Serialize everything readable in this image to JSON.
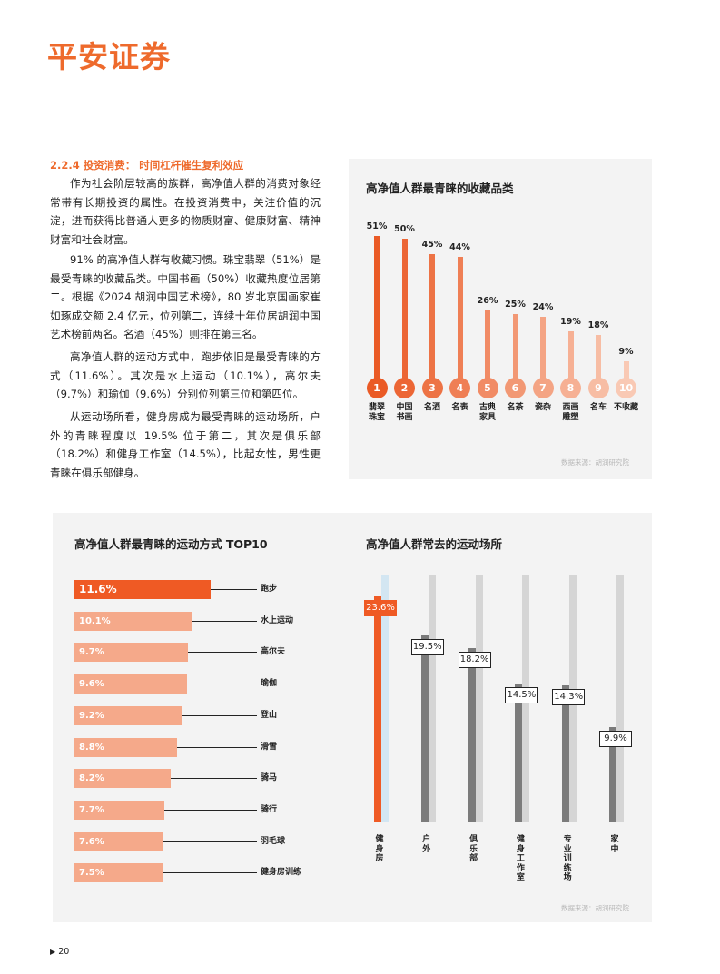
{
  "header": {
    "logo_text": "平安证券"
  },
  "section": {
    "heading": "2.2.4 投资消费： 时间杠杆催生复利效应",
    "paragraphs": [
      "作为社会阶层较高的族群，高净值人群的消费对象经常带有长期投资的属性。在投资消费中，关注价值的沉淀，进而获得比普通人更多的物质财富、健康财富、精神财富和社会财富。",
      "91% 的高净值人群有收藏习惯。珠宝翡翠（51%）是最受青睐的收藏品类。中国书画（50%）收藏热度位居第二。根据《2024 胡润中国艺术榜》，80 岁北京国画家崔如琢成交额 2.4 亿元，位列第二，连续十年位居胡润中国艺术榜前两名。名酒（45%）则排在第三名。",
      "高净值人群的运动方式中，跑步依旧是最受青睐的方式（11.6%）。其次是水上运动（10.1%），高尔夫（9.7%）和瑜伽（9.6%）分别位列第三位和第四位。",
      "从运动场所看，健身房成为最受青睐的运动场所，户外的青睐程度以 19.5% 位于第二，其次是俱乐部（18.2%）和健身工作室（14.5%），比起女性，男性更青睐在俱乐部健身。"
    ]
  },
  "chart_data": [
    {
      "type": "bar",
      "title": "高净值人群最青睐的收藏品类",
      "categories": [
        "翡翠珠宝",
        "中国书画",
        "名酒",
        "名表",
        "古典家具",
        "名茶",
        "瓷杂",
        "西画雕塑",
        "名车",
        "不收藏"
      ],
      "category_lines": [
        [
          "翡翠",
          "珠宝"
        ],
        [
          "中国",
          "书画"
        ],
        [
          "名酒"
        ],
        [
          "名表"
        ],
        [
          "古典",
          "家具"
        ],
        [
          "名茶"
        ],
        [
          "瓷杂"
        ],
        [
          "西画",
          "雕塑"
        ],
        [
          "名车"
        ],
        [
          "不收藏"
        ]
      ],
      "ranks": [
        "1",
        "2",
        "3",
        "4",
        "5",
        "6",
        "7",
        "8",
        "9",
        "10"
      ],
      "values": [
        51,
        50,
        45,
        44,
        26,
        25,
        24,
        19,
        18,
        9
      ],
      "value_labels": [
        "51%",
        "50%",
        "45%",
        "44%",
        "26%",
        "25%",
        "24%",
        "19%",
        "18%",
        "9%"
      ],
      "unit": "%",
      "source": "数据来源：胡润研究院"
    },
    {
      "type": "bar",
      "orientation": "horizontal",
      "title": "高净值人群最青睐的运动方式 TOP10",
      "categories": [
        "跑步",
        "水上运动",
        "高尔夫",
        "瑜伽",
        "登山",
        "滑雪",
        "骑马",
        "骑行",
        "羽毛球",
        "健身房训练"
      ],
      "values": [
        11.6,
        10.1,
        9.7,
        9.6,
        9.2,
        8.8,
        8.2,
        7.7,
        7.6,
        7.5
      ],
      "value_labels": [
        "11.6%",
        "10.1%",
        "9.7%",
        "9.6%",
        "9.2%",
        "8.8%",
        "8.2%",
        "7.7%",
        "7.6%",
        "7.5%"
      ],
      "unit": "%"
    },
    {
      "type": "bar",
      "title": "高净值人群常去的运动场所",
      "categories": [
        "健身房",
        "户外",
        "俱乐部",
        "健身工作室",
        "专业训练场",
        "家中"
      ],
      "values": [
        23.6,
        19.5,
        18.2,
        14.5,
        14.3,
        9.9
      ],
      "value_labels": [
        "23.6%",
        "19.5%",
        "18.2%",
        "14.5%",
        "14.3%",
        "9.9%"
      ],
      "unit": "%",
      "source": "数据来源：胡润研究院"
    }
  ],
  "footer": {
    "page_number": "20",
    "marker": "▶"
  },
  "colors": {
    "brand": "#ee6a2c",
    "highlight": "#ef5a24",
    "bar_primary": "#ee6a2c",
    "bar_light": "#f5a98a",
    "venue_dark": "#7b7b7b",
    "venue_light": "#d5d5d5",
    "panel_bg": "#f3f3f3"
  }
}
